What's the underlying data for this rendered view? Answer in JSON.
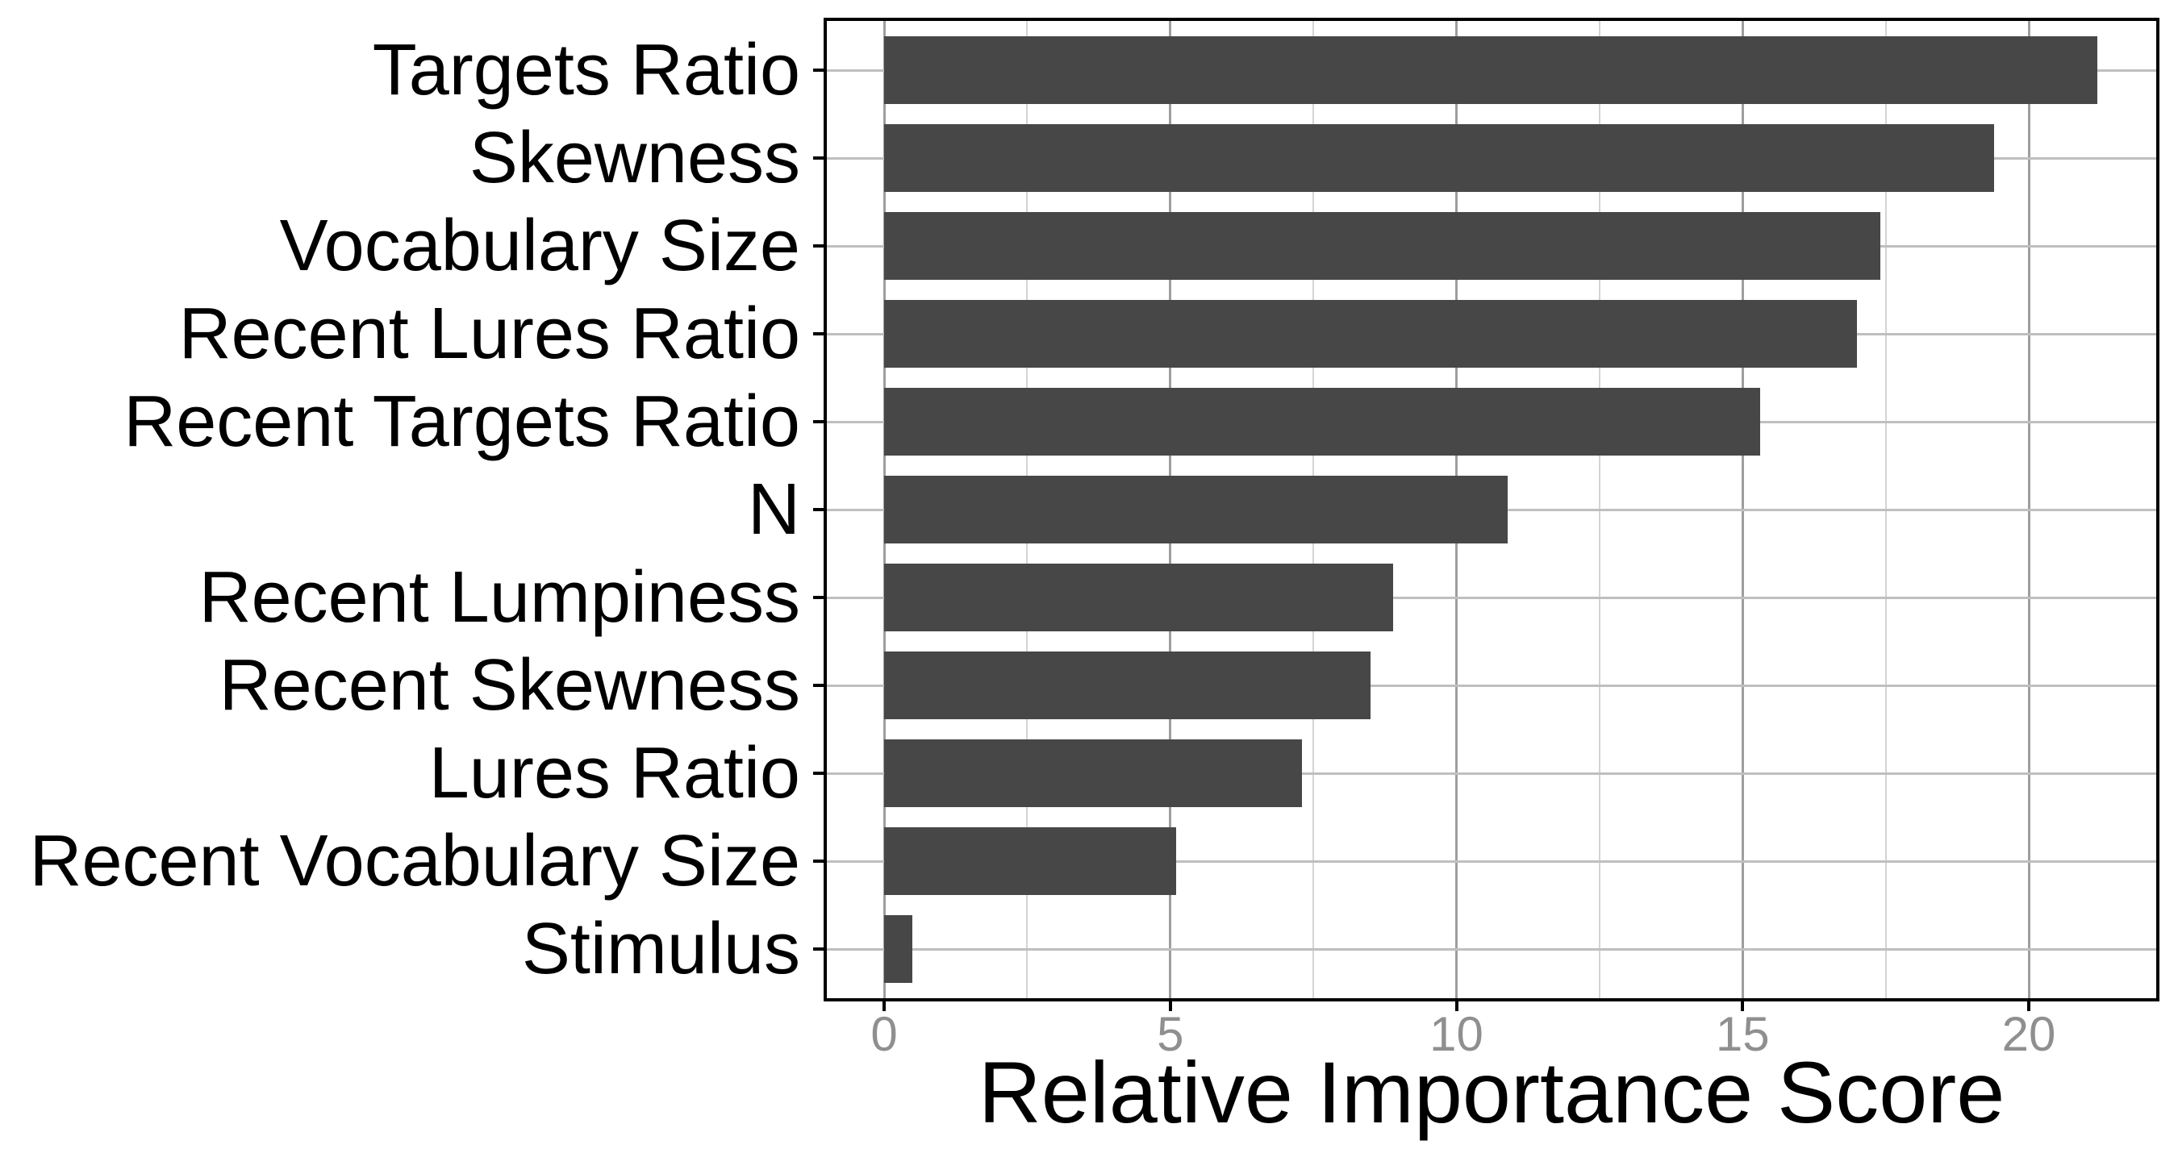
{
  "figure": {
    "background": "#ffffff"
  },
  "chart_data": {
    "type": "bar",
    "orientation": "horizontal",
    "title": "",
    "xlabel": "Relative Importance Score",
    "ylabel": "",
    "categories": [
      "Targets Ratio",
      "Skewness",
      "Vocabulary Size",
      "Recent Lures Ratio",
      "Recent Targets Ratio",
      "N",
      "Recent Lumpiness",
      "Recent Skewness",
      "Lures Ratio",
      "Recent Vocabulary Size",
      "Stimulus"
    ],
    "values": [
      21.2,
      19.4,
      17.4,
      17.0,
      15.3,
      10.9,
      8.9,
      8.5,
      7.3,
      5.1,
      0.5
    ],
    "x_ticks": [
      0,
      5,
      10,
      15,
      20
    ],
    "x_minor_gridlines": [
      2.5,
      7.5,
      12.5,
      17.5
    ],
    "xlim": [
      -1.1,
      22.3
    ],
    "grid": true,
    "legend": false,
    "styles": {
      "bar_color": "#474747",
      "vertical_major_grid_color": "#9e9e9e",
      "horizontal_major_grid_color": "#bfbfbf",
      "minor_grid_color": "#d4d4d4",
      "tick_label_color": "#8f8f8f",
      "category_label_color": "#000000",
      "axis_title_color": "#000000",
      "panel_border_color": "#000000",
      "tick_mark_color": "#000000"
    }
  }
}
